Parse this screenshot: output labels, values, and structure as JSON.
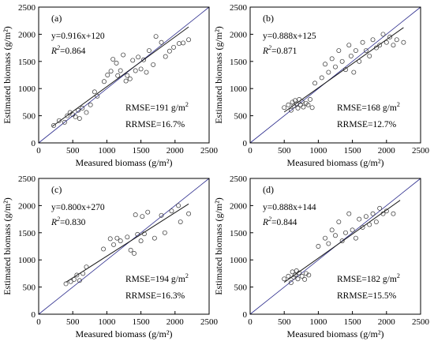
{
  "chart_data": [
    {
      "type": "scatter",
      "panel_label": "(a)",
      "xlabel": "Measured biomass (g/m²)",
      "ylabel": "Estimated biomass (g/m²)",
      "xlim": [
        0,
        2500
      ],
      "ylim": [
        0,
        2500
      ],
      "x_ticks": [
        "0",
        "500",
        "1000",
        "1500",
        "2000",
        "2500"
      ],
      "y_ticks": [
        "0",
        "500",
        "1000",
        "1500",
        "2000",
        "2500"
      ],
      "grid": false,
      "equation": "y=0.916x+120",
      "r2_label": "R",
      "r2_value": "=0.864",
      "rmse": "RMSE=191 g/m",
      "rrmse": "RRMSE=16.7%",
      "fit": {
        "slope": 0.916,
        "intercept": 120,
        "x_range": [
          200,
          2200
        ]
      },
      "points": [
        [
          220,
          320
        ],
        [
          300,
          410
        ],
        [
          380,
          380
        ],
        [
          420,
          500
        ],
        [
          460,
          560
        ],
        [
          500,
          520
        ],
        [
          540,
          480
        ],
        [
          580,
          600
        ],
        [
          600,
          450
        ],
        [
          640,
          640
        ],
        [
          700,
          560
        ],
        [
          760,
          700
        ],
        [
          820,
          940
        ],
        [
          860,
          860
        ],
        [
          960,
          1130
        ],
        [
          1010,
          1250
        ],
        [
          1060,
          1320
        ],
        [
          1090,
          1540
        ],
        [
          1140,
          1470
        ],
        [
          1160,
          1240
        ],
        [
          1200,
          1330
        ],
        [
          1240,
          1620
        ],
        [
          1280,
          1140
        ],
        [
          1300,
          1240
        ],
        [
          1340,
          1180
        ],
        [
          1380,
          1520
        ],
        [
          1420,
          1330
        ],
        [
          1460,
          1580
        ],
        [
          1500,
          1360
        ],
        [
          1540,
          1530
        ],
        [
          1580,
          1300
        ],
        [
          1620,
          1700
        ],
        [
          1680,
          1440
        ],
        [
          1720,
          1960
        ],
        [
          1800,
          1850
        ],
        [
          1860,
          1590
        ],
        [
          1920,
          1690
        ],
        [
          1980,
          1760
        ],
        [
          2060,
          1830
        ],
        [
          2120,
          1840
        ],
        [
          2200,
          1900
        ]
      ]
    },
    {
      "type": "scatter",
      "panel_label": "(b)",
      "xlabel": "Measured biomass (g/m²)",
      "ylabel": "Estimated biomass (g/m²)",
      "xlim": [
        0,
        2500
      ],
      "ylim": [
        0,
        2500
      ],
      "x_ticks": [
        "0",
        "500",
        "1000",
        "1500",
        "2000",
        "2500"
      ],
      "y_ticks": [
        "0",
        "500",
        "1000",
        "1500",
        "2000",
        "2500"
      ],
      "grid": false,
      "equation": "y=0.888x+125",
      "r2_label": "R",
      "r2_value": "=0.871",
      "rmse": "RMSE=168 g/m",
      "rrmse": "RRMSE=12.7%",
      "fit": {
        "slope": 0.888,
        "intercept": 125,
        "x_range": [
          500,
          2250
        ]
      },
      "points": [
        [
          500,
          650
        ],
        [
          560,
          700
        ],
        [
          600,
          600
        ],
        [
          620,
          750
        ],
        [
          640,
          680
        ],
        [
          660,
          780
        ],
        [
          680,
          720
        ],
        [
          700,
          640
        ],
        [
          720,
          800
        ],
        [
          740,
          700
        ],
        [
          760,
          760
        ],
        [
          780,
          660
        ],
        [
          820,
          730
        ],
        [
          850,
          700
        ],
        [
          880,
          800
        ],
        [
          910,
          650
        ],
        [
          950,
          1100
        ],
        [
          1050,
          1200
        ],
        [
          1100,
          1450
        ],
        [
          1150,
          1300
        ],
        [
          1200,
          1550
        ],
        [
          1250,
          1400
        ],
        [
          1300,
          1700
        ],
        [
          1350,
          1500
        ],
        [
          1400,
          1350
        ],
        [
          1450,
          1800
        ],
        [
          1480,
          1600
        ],
        [
          1520,
          1300
        ],
        [
          1550,
          1700
        ],
        [
          1600,
          1500
        ],
        [
          1650,
          1850
        ],
        [
          1700,
          1700
        ],
        [
          1750,
          1600
        ],
        [
          1800,
          1900
        ],
        [
          1850,
          1750
        ],
        [
          1900,
          1800
        ],
        [
          1950,
          2000
        ],
        [
          2000,
          1850
        ],
        [
          2050,
          1950
        ],
        [
          2100,
          1800
        ],
        [
          2150,
          1900
        ],
        [
          2250,
          1850
        ]
      ]
    },
    {
      "type": "scatter",
      "panel_label": "(c)",
      "xlabel": "Measured biomass (g/m²)",
      "ylabel": "Estimated biomass (g/m²)",
      "xlim": [
        0,
        2500
      ],
      "ylim": [
        0,
        2500
      ],
      "x_ticks": [
        "0",
        "500",
        "1000",
        "1500",
        "2000",
        "2500"
      ],
      "y_ticks": [
        "0",
        "500",
        "1000",
        "1500",
        "2000",
        "2500"
      ],
      "grid": false,
      "equation": "y=0.800x+270",
      "r2_label": "R",
      "r2_value": "=0.830",
      "rmse": "RMSE=194 g/m",
      "rrmse": "RRMSE=16.3%",
      "fit": {
        "slope": 0.8,
        "intercept": 270,
        "x_range": [
          400,
          2200
        ]
      },
      "points": [
        [
          400,
          560
        ],
        [
          470,
          600
        ],
        [
          520,
          640
        ],
        [
          560,
          720
        ],
        [
          600,
          620
        ],
        [
          650,
          750
        ],
        [
          700,
          870
        ],
        [
          950,
          1200
        ],
        [
          1050,
          1390
        ],
        [
          1100,
          1280
        ],
        [
          1150,
          1400
        ],
        [
          1200,
          1350
        ],
        [
          1300,
          1420
        ],
        [
          1350,
          1180
        ],
        [
          1400,
          1120
        ],
        [
          1420,
          1830
        ],
        [
          1450,
          1470
        ],
        [
          1500,
          1350
        ],
        [
          1520,
          1800
        ],
        [
          1550,
          1480
        ],
        [
          1600,
          1880
        ],
        [
          1700,
          1400
        ],
        [
          1800,
          1820
        ],
        [
          1850,
          1500
        ],
        [
          1950,
          1900
        ],
        [
          2050,
          2000
        ],
        [
          2080,
          1700
        ],
        [
          2200,
          1850
        ]
      ]
    },
    {
      "type": "scatter",
      "panel_label": "(d)",
      "xlabel": "Measured biomass (g/m²)",
      "ylabel": "Estimated biomass (g/m²)",
      "xlim": [
        0,
        2500
      ],
      "ylim": [
        0,
        2500
      ],
      "x_ticks": [
        "0",
        "500",
        "1000",
        "1500",
        "2000",
        "2500"
      ],
      "y_ticks": [
        "0",
        "500",
        "1000",
        "1500",
        "2000",
        "2500"
      ],
      "grid": false,
      "equation": "y=0.888x+144",
      "r2_label": "R",
      "r2_value": "=0.844",
      "rmse": "RMSE=182 g/m",
      "rrmse": "RRMSE=15.5%",
      "fit": {
        "slope": 0.888,
        "intercept": 144,
        "x_range": [
          500,
          2200
        ]
      },
      "points": [
        [
          500,
          650
        ],
        [
          560,
          700
        ],
        [
          600,
          580
        ],
        [
          620,
          780
        ],
        [
          640,
          680
        ],
        [
          660,
          720
        ],
        [
          680,
          800
        ],
        [
          700,
          650
        ],
        [
          720,
          760
        ],
        [
          760,
          700
        ],
        [
          800,
          640
        ],
        [
          820,
          750
        ],
        [
          860,
          720
        ],
        [
          1000,
          1250
        ],
        [
          1100,
          1400
        ],
        [
          1150,
          1300
        ],
        [
          1200,
          1550
        ],
        [
          1250,
          1450
        ],
        [
          1300,
          1700
        ],
        [
          1350,
          1350
        ],
        [
          1400,
          1500
        ],
        [
          1450,
          1850
        ],
        [
          1500,
          1550
        ],
        [
          1550,
          1400
        ],
        [
          1600,
          1750
        ],
        [
          1650,
          1600
        ],
        [
          1700,
          1800
        ],
        [
          1750,
          1650
        ],
        [
          1800,
          1850
        ],
        [
          1850,
          1700
        ],
        [
          1900,
          1950
        ],
        [
          1950,
          1850
        ],
        [
          2000,
          1900
        ],
        [
          2100,
          1850
        ]
      ]
    }
  ],
  "style": {
    "line_color": "#2b2b8c",
    "point_color": "#333333",
    "axis_color": "#000000"
  }
}
